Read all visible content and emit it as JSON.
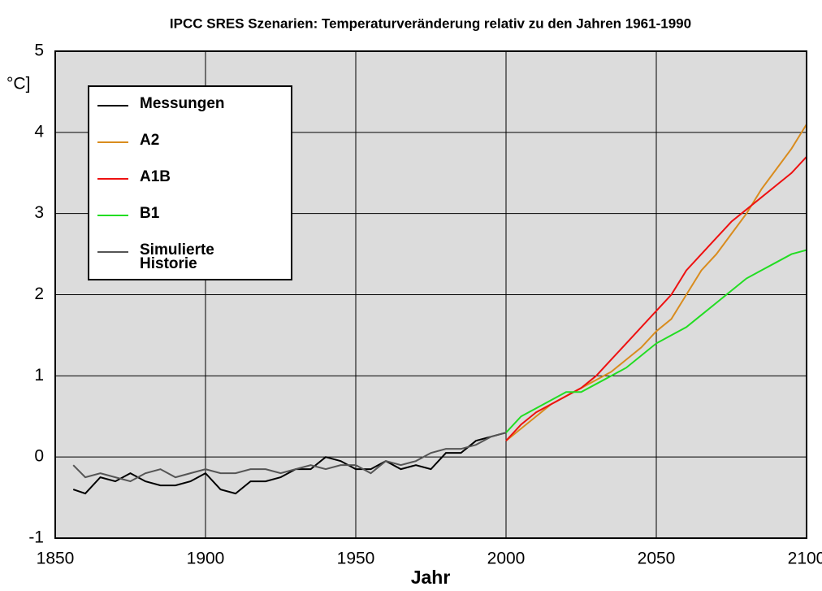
{
  "chart_data": {
    "type": "line",
    "title": "IPCC SRES Szenarien: Temperaturveränderung relativ zu den Jahren 1961-1990",
    "x_label": "Jahr",
    "y_label": "°C]",
    "xlim": [
      1850,
      2100
    ],
    "xticks": [
      1850,
      1900,
      1950,
      2000,
      2050,
      2100
    ],
    "ylim": [
      -1,
      5
    ],
    "yticks": [
      -1,
      0,
      1,
      2,
      3,
      4,
      5
    ],
    "grid": true,
    "series": [
      {
        "name": "Messungen",
        "color": "#000000",
        "x": [
          1856,
          1860,
          1865,
          1870,
          1875,
          1880,
          1885,
          1890,
          1895,
          1900,
          1905,
          1910,
          1915,
          1920,
          1925,
          1930,
          1935,
          1940,
          1945,
          1950,
          1955,
          1960,
          1965,
          1970,
          1975,
          1980,
          1985,
          1990,
          1995,
          2000
        ],
        "values": [
          -0.4,
          -0.45,
          -0.25,
          -0.3,
          -0.2,
          -0.3,
          -0.35,
          -0.35,
          -0.3,
          -0.2,
          -0.4,
          -0.45,
          -0.3,
          -0.3,
          -0.25,
          -0.15,
          -0.15,
          0.0,
          -0.05,
          -0.15,
          -0.15,
          -0.05,
          -0.15,
          -0.1,
          -0.15,
          0.05,
          0.05,
          0.2,
          0.25,
          0.3
        ]
      },
      {
        "name": "A2",
        "color": "#d98c1e",
        "x": [
          2000,
          2005,
          2010,
          2015,
          2020,
          2025,
          2030,
          2035,
          2040,
          2045,
          2050,
          2055,
          2060,
          2065,
          2070,
          2075,
          2080,
          2085,
          2090,
          2095,
          2100
        ],
        "values": [
          0.2,
          0.35,
          0.5,
          0.65,
          0.75,
          0.85,
          0.95,
          1.05,
          1.2,
          1.35,
          1.55,
          1.7,
          2.0,
          2.3,
          2.5,
          2.75,
          3.0,
          3.3,
          3.55,
          3.8,
          4.1
        ]
      },
      {
        "name": "A1B",
        "color": "#ee1111",
        "x": [
          2000,
          2005,
          2010,
          2015,
          2020,
          2025,
          2030,
          2035,
          2040,
          2045,
          2050,
          2055,
          2060,
          2065,
          2070,
          2075,
          2080,
          2085,
          2090,
          2095,
          2100
        ],
        "values": [
          0.2,
          0.4,
          0.55,
          0.65,
          0.75,
          0.85,
          1.0,
          1.2,
          1.4,
          1.6,
          1.8,
          2.0,
          2.3,
          2.5,
          2.7,
          2.9,
          3.05,
          3.2,
          3.35,
          3.5,
          3.7
        ]
      },
      {
        "name": "B1",
        "color": "#22dd22",
        "x": [
          2000,
          2005,
          2010,
          2015,
          2020,
          2025,
          2030,
          2035,
          2040,
          2045,
          2050,
          2055,
          2060,
          2065,
          2070,
          2075,
          2080,
          2085,
          2090,
          2095,
          2100
        ],
        "values": [
          0.3,
          0.5,
          0.6,
          0.7,
          0.8,
          0.8,
          0.9,
          1.0,
          1.1,
          1.25,
          1.4,
          1.5,
          1.6,
          1.75,
          1.9,
          2.05,
          2.2,
          2.3,
          2.4,
          2.5,
          2.55
        ]
      },
      {
        "name": "Simulierte Historie",
        "color": "#555555",
        "x": [
          1856,
          1860,
          1865,
          1870,
          1875,
          1880,
          1885,
          1890,
          1895,
          1900,
          1905,
          1910,
          1915,
          1920,
          1925,
          1930,
          1935,
          1940,
          1945,
          1950,
          1955,
          1960,
          1965,
          1970,
          1975,
          1980,
          1985,
          1990,
          1995,
          2000
        ],
        "values": [
          -0.1,
          -0.25,
          -0.2,
          -0.25,
          -0.3,
          -0.2,
          -0.15,
          -0.25,
          -0.2,
          -0.15,
          -0.2,
          -0.2,
          -0.15,
          -0.15,
          -0.2,
          -0.15,
          -0.1,
          -0.15,
          -0.1,
          -0.1,
          -0.2,
          -0.05,
          -0.1,
          -0.05,
          0.05,
          0.1,
          0.1,
          0.15,
          0.25,
          0.3
        ]
      }
    ]
  }
}
